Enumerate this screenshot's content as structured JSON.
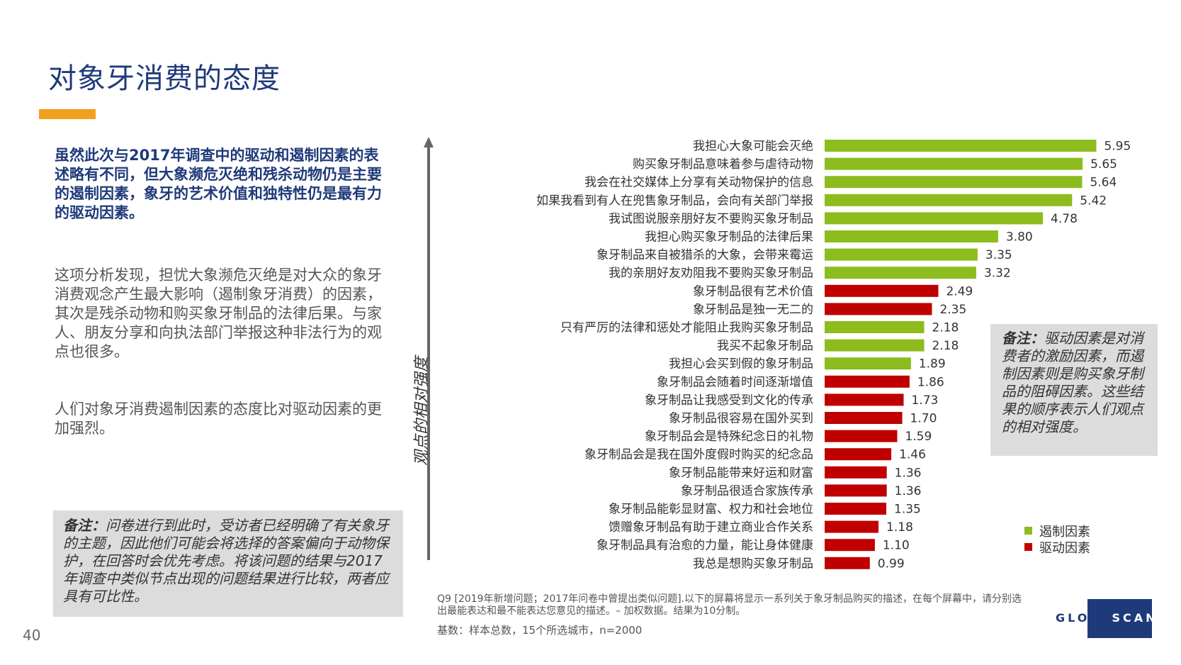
{
  "title": "对象牙消费的态度",
  "intro": "虽然此次与2017年调查中的驱动和遏制因素的表述略有不同，但大象濒危灭绝和残杀动物仍是主要的遏制因素，象牙的艺术价值和独特性仍是最有力的驱动因素。",
  "para1": "这项分析发现，担忧大象濒危灭绝是对大众的象牙消费观念产生最大影响（遏制象牙消费）的因素，其次是残杀动物和购买象牙制品的法律后果。与家人、朋友分享和向执法部门举报这种非法行为的观点也很多。",
  "para2": "人们对象牙消费遏制因素的态度比对驱动因素的更加强烈。",
  "note_left_label": "备注：",
  "note_left": "问卷进行到此时，受访者已经明确了有关象牙的主题，因此他们可能会将选择的答案偏向于动物保护，在回答时会优先考虑。将该问题的结果与2017年调查中类似节点出现的问题结果进行比较，两者应具有可比性。",
  "note_right_label": "备注：",
  "note_right": "驱动因素是对消费者的激励因素，而遏制因素则是购买象牙制品的阻碍因素。这些结果的顺序表示人们观点的相对强度。",
  "page_number": "40",
  "footnote": "Q9 [2019年新增问题；2017年问卷中曾提出类似问题].以下的屏幕将显示一系列关于象牙制品购买的描述，在每个屏幕中，请分别选出最能表达和最不能表达您意见的描述。– 加权数据。结果为10分制。",
  "base": "基数：样本总数，15个所选城市，n=2000",
  "logo": "GLOBESCAN",
  "colors": {
    "deterrent": "#8cbc1e",
    "driver": "#c00000",
    "title": "#1f3a7a",
    "accent": "#f0a01e"
  },
  "chart_data": {
    "type": "bar",
    "orientation": "horizontal",
    "axis_label": "观点的相对强度",
    "legend": [
      {
        "key": "deterrent",
        "label": "遏制因素"
      },
      {
        "key": "driver",
        "label": "驱动因素"
      }
    ],
    "categories": [
      "我担心大象可能会灭绝",
      "购买象牙制品意味着参与虐待动物",
      "我会在社交媒体上分享有关动物保护的信息",
      "如果我看到有人在兜售象牙制品，会向有关部门举报",
      "我试图说服亲朋好友不要购买象牙制品",
      "我担心购买象牙制品的法律后果",
      "象牙制品来自被猎杀的大象，会带来霉运",
      "我的亲朋好友劝阻我不要购买象牙制品",
      "象牙制品很有艺术价值",
      "象牙制品是独一无二的",
      "只有严厉的法律和惩处才能阻止我购买象牙制品",
      "我买不起象牙制品",
      "我担心会买到假的象牙制品",
      "象牙制品会随着时间逐渐增值",
      "象牙制品让我感受到文化的传承",
      "象牙制品很容易在国外买到",
      "象牙制品会是特殊纪念日的礼物",
      "象牙制品会是我在国外度假时购买的纪念品",
      "象牙制品能带来好运和财富",
      "象牙制品很适合家族传承",
      "象牙制品能彰显财富、权力和社会地位",
      "馈赠象牙制品有助于建立商业合作关系",
      "象牙制品具有治愈的力量，能让身体健康",
      "我总是想购买象牙制品"
    ],
    "values": [
      5.95,
      5.65,
      5.64,
      5.42,
      4.78,
      3.8,
      3.35,
      3.32,
      2.49,
      2.35,
      2.18,
      2.18,
      1.89,
      1.86,
      1.73,
      1.7,
      1.59,
      1.46,
      1.36,
      1.36,
      1.35,
      1.18,
      1.1,
      0.99
    ],
    "value_labels": [
      "5.95",
      "5.65",
      "5.64",
      "5.42",
      "4.78",
      "3.80",
      "3.35",
      "3.32",
      "2.49",
      "2.35",
      "2.18",
      "2.18",
      "1.89",
      "1.86",
      "1.73",
      "1.70",
      "1.59",
      "1.46",
      "1.36",
      "1.36",
      "1.35",
      "1.18",
      "1.10",
      "0.99"
    ],
    "types": [
      "deterrent",
      "deterrent",
      "deterrent",
      "deterrent",
      "deterrent",
      "deterrent",
      "deterrent",
      "deterrent",
      "driver",
      "driver",
      "deterrent",
      "deterrent",
      "deterrent",
      "driver",
      "driver",
      "driver",
      "driver",
      "driver",
      "driver",
      "driver",
      "driver",
      "driver",
      "driver",
      "driver"
    ],
    "xlim": [
      0,
      6.3
    ]
  }
}
